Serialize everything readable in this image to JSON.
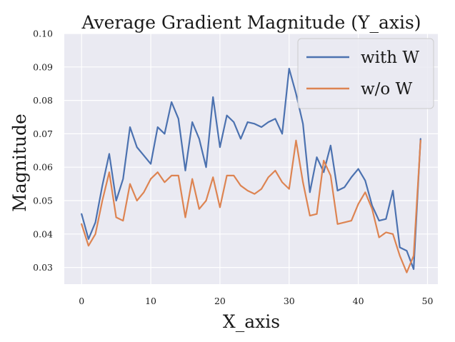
{
  "chart_data": {
    "type": "line",
    "title": "Average Gradient Magnitude (Y_axis)",
    "xlabel": "X_axis",
    "ylabel": "Magnitude",
    "xlim": [
      -2.5,
      51.5
    ],
    "ylim": [
      0.025,
      0.1
    ],
    "xticks": [
      0,
      10,
      20,
      30,
      40,
      50
    ],
    "yticks": [
      0.03,
      0.04,
      0.05,
      0.06,
      0.07,
      0.08,
      0.09,
      0.1
    ],
    "ytick_labels": [
      "0.03",
      "0.04",
      "0.05",
      "0.06",
      "0.07",
      "0.08",
      "0.09",
      "0.10"
    ],
    "grid": true,
    "legend_position": "top-right",
    "x": [
      0,
      1,
      2,
      3,
      4,
      5,
      6,
      7,
      8,
      9,
      10,
      11,
      12,
      13,
      14,
      15,
      16,
      17,
      18,
      19,
      20,
      21,
      22,
      23,
      24,
      25,
      26,
      27,
      28,
      29,
      30,
      31,
      32,
      33,
      34,
      35,
      36,
      37,
      38,
      39,
      40,
      41,
      42,
      43,
      44,
      45,
      46,
      47,
      48,
      49
    ],
    "series": [
      {
        "name": "with W",
        "color": "#4c72b0",
        "values": [
          0.046,
          0.0385,
          0.0435,
          0.0545,
          0.064,
          0.05,
          0.0565,
          0.072,
          0.066,
          0.0635,
          0.061,
          0.072,
          0.07,
          0.0795,
          0.0745,
          0.059,
          0.0735,
          0.0685,
          0.06,
          0.081,
          0.066,
          0.0755,
          0.0735,
          0.0685,
          0.0735,
          0.073,
          0.072,
          0.0735,
          0.0745,
          0.07,
          0.0895,
          0.082,
          0.073,
          0.0525,
          0.063,
          0.0585,
          0.0665,
          0.053,
          0.054,
          0.057,
          0.0595,
          0.056,
          0.0485,
          0.044,
          0.0445,
          0.053,
          0.036,
          0.035,
          0.0295,
          0.0685
        ]
      },
      {
        "name": "w/o W",
        "color": "#dd8452",
        "values": [
          0.043,
          0.0365,
          0.04,
          0.05,
          0.0585,
          0.045,
          0.044,
          0.055,
          0.05,
          0.0525,
          0.0565,
          0.0585,
          0.0555,
          0.0575,
          0.0575,
          0.045,
          0.0565,
          0.0475,
          0.05,
          0.057,
          0.048,
          0.0575,
          0.0575,
          0.0545,
          0.053,
          0.052,
          0.0535,
          0.057,
          0.059,
          0.0555,
          0.0535,
          0.068,
          0.0555,
          0.0455,
          0.046,
          0.062,
          0.0575,
          0.043,
          0.0435,
          0.044,
          0.049,
          0.0525,
          0.0475,
          0.039,
          0.0405,
          0.04,
          0.0335,
          0.0285,
          0.0335,
          0.068
        ]
      }
    ]
  }
}
